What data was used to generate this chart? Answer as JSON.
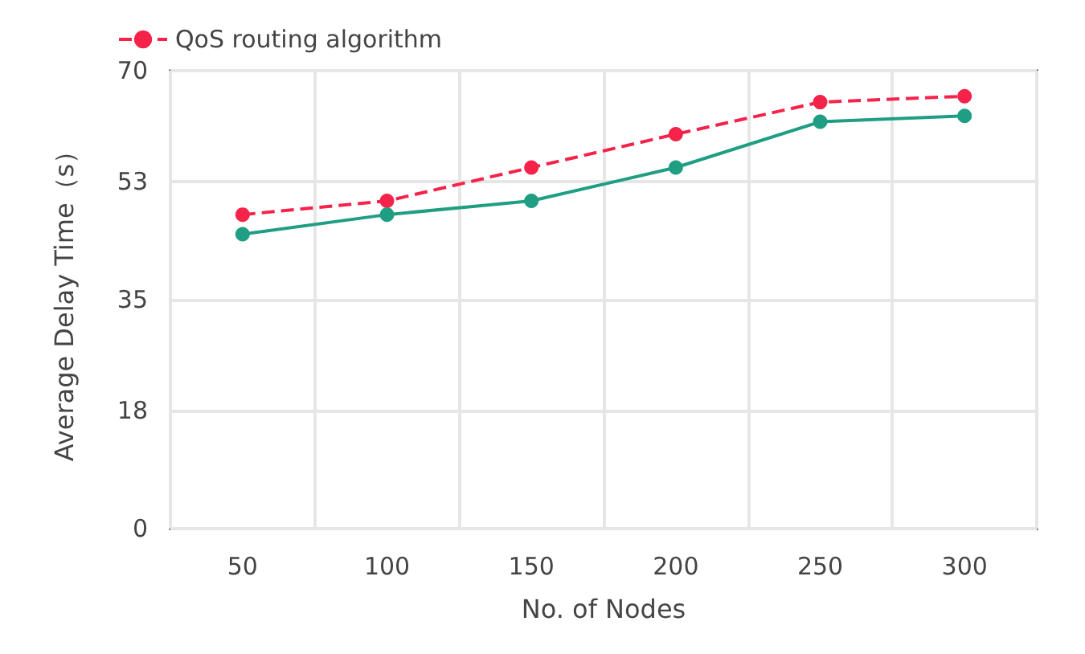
{
  "chart_data": {
    "type": "line",
    "xlabel": "No. of Nodes",
    "ylabel": "Average Delay Time（s）",
    "categories": [
      "50",
      "100",
      "150",
      "200",
      "250",
      "300"
    ],
    "series": [
      {
        "name": "QoS routing algorithm",
        "color": "#f5224a",
        "line_style": "dashed",
        "values": [
          48.0,
          50.1,
          55.2,
          60.3,
          65.2,
          66.1
        ]
      },
      {
        "color": "#1f9e84",
        "line_style": "solid",
        "values": [
          45.0,
          48.0,
          50.1,
          55.2,
          62.2,
          63.1
        ]
      }
    ],
    "ylim": [
      0,
      70
    ],
    "yticks": [
      0,
      18,
      35,
      53,
      70
    ],
    "grid": true,
    "legend": "top left",
    "marker": "circle"
  }
}
